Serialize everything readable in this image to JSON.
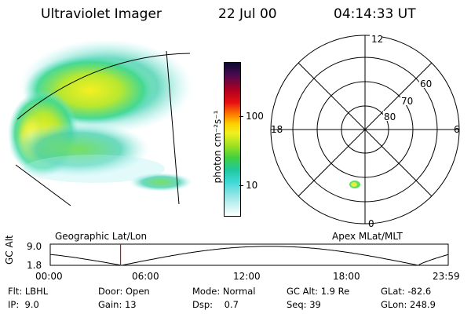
{
  "header": {
    "instrument": "Ultraviolet Imager",
    "date": "22 Jul 00",
    "time": "04:14:33 UT"
  },
  "colorbar": {
    "unit_label": "photon cm⁻²s⁻¹",
    "ticks": [
      "100",
      "10"
    ],
    "scale": "log"
  },
  "polar": {
    "mlt_labels": [
      "12",
      "18",
      "6",
      "0"
    ],
    "mlat_labels": [
      "60",
      "70",
      "80"
    ]
  },
  "panels": {
    "left_label": "Geographic Lat/Lon",
    "right_label": "Apex MLat/MLT"
  },
  "altitude_plot": {
    "ylabel": "GC Alt",
    "y_ticks": [
      "9.0",
      "1.8"
    ],
    "x_ticks": [
      "00:00",
      "06:00",
      "12:00",
      "18:00",
      "23:59"
    ],
    "current_time_hours": 4.24
  },
  "status": {
    "row1": [
      {
        "key": "Flt:",
        "value": "LBHL"
      },
      {
        "key": "Door:",
        "value": "Open"
      },
      {
        "key": "Mode:",
        "value": "Normal"
      },
      {
        "key": "GC Alt:",
        "value": "1.9 Re"
      },
      {
        "key": "GLat:",
        "value": "-82.6"
      }
    ],
    "row2": [
      {
        "key": "IP:",
        "value": "9.0"
      },
      {
        "key": "Gain:",
        "value": "13"
      },
      {
        "key": "Dsp:",
        "value": "0.7"
      },
      {
        "key": "Seq:",
        "value": "39"
      },
      {
        "key": "GLon:",
        "value": "248.9"
      }
    ]
  },
  "colors": {
    "orbit_line": "#000000",
    "time_marker": "#d01010"
  }
}
